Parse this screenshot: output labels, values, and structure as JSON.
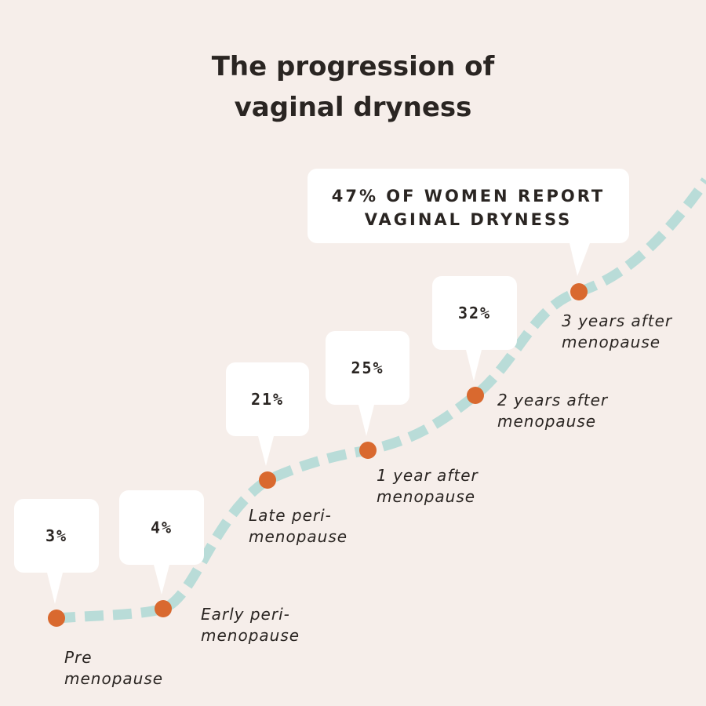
{
  "header": {
    "title_lines": [
      "The progression of",
      "vaginal dryness"
    ]
  },
  "callout": {
    "lines": [
      "47% OF WOMEN REPORT",
      "VAGINAL DRYNESS"
    ]
  },
  "stages": [
    {
      "value": "3%",
      "label_lines": [
        "Pre",
        "menopause"
      ]
    },
    {
      "value": "4%",
      "label_lines": [
        "Early peri-",
        "menopause"
      ]
    },
    {
      "value": "21%",
      "label_lines": [
        "Late peri-",
        "menopause"
      ]
    },
    {
      "value": "25%",
      "label_lines": [
        "1 year after",
        "menopause"
      ]
    },
    {
      "value": "32%",
      "label_lines": [
        "2 years after",
        "menopause"
      ]
    },
    {
      "label_lines": [
        "3 years after",
        "menopause"
      ]
    }
  ]
}
